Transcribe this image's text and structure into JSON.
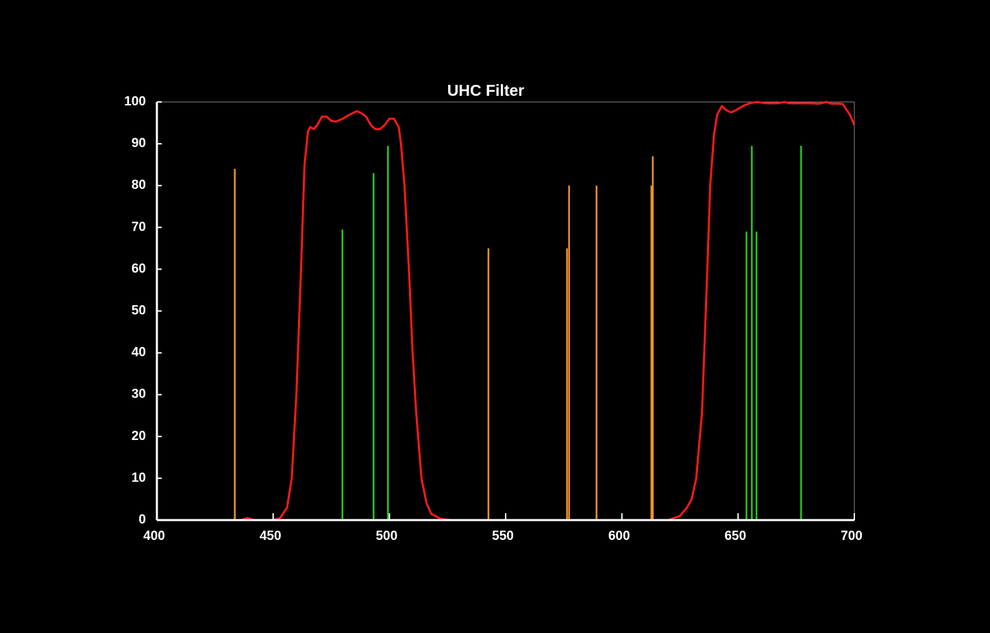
{
  "chart_data": {
    "type": "line",
    "title": "UHC Filter",
    "xlim": [
      400,
      700
    ],
    "ylim": [
      0,
      100
    ],
    "xticks": [
      400,
      450,
      500,
      550,
      600,
      650,
      700
    ],
    "yticks": [
      0,
      10,
      20,
      30,
      40,
      50,
      60,
      70,
      80,
      90,
      100
    ],
    "series": [
      {
        "color": "#ff1a1a",
        "style": "curve",
        "x": [
          400,
          436,
          439,
          442,
          450,
          453,
          456,
          458,
          460,
          462,
          463.5,
          465,
          466,
          467.5,
          469,
          471,
          473,
          475,
          477,
          480,
          483,
          486,
          488,
          490,
          492,
          494,
          496,
          498,
          500,
          502,
          504,
          505,
          506.5,
          508.5,
          510,
          511.5,
          513.8,
          516,
          518,
          522,
          526,
          620,
          625,
          628,
          630,
          632,
          634.5,
          636.7,
          638,
          639.6,
          641,
          643,
          645,
          647,
          649,
          652,
          655,
          658,
          662,
          667,
          670,
          672,
          675,
          680,
          685,
          688,
          690,
          693,
          695,
          698,
          700
        ],
        "values": [
          0,
          0,
          0.5,
          0,
          0,
          0.5,
          3,
          10,
          30,
          60,
          85,
          93,
          94,
          93.5,
          94.5,
          96.5,
          96.5,
          95.5,
          95.3,
          96,
          97,
          97.8,
          97.3,
          96.5,
          94.5,
          93.5,
          93.5,
          94.5,
          96,
          96,
          94,
          90,
          80,
          59,
          40,
          26,
          10,
          4,
          1.5,
          0.3,
          0,
          0,
          1,
          3,
          5,
          10,
          26,
          59,
          80,
          92,
          97,
          99,
          98,
          97.5,
          98,
          99,
          99.7,
          100,
          99.7,
          99.7,
          100,
          99.7,
          99.7,
          99.7,
          99.6,
          100,
          99.6,
          99.6,
          99.5,
          97,
          94.5
        ]
      },
      {
        "color": "#f0922e",
        "style": "stem",
        "x": [
          433.5,
          542.6,
          576.4,
          577.3,
          589.1,
          612.7,
          613.3
        ],
        "values": [
          84,
          65,
          65,
          80,
          80,
          80,
          87
        ]
      },
      {
        "color": "#22cc22",
        "style": "stem",
        "x": [
          479.8,
          493.2,
          499.4,
          653.6,
          655.9,
          657.9,
          677.1
        ],
        "values": [
          69.5,
          83,
          89.5,
          69,
          89.5,
          69,
          89.5
        ]
      }
    ]
  }
}
